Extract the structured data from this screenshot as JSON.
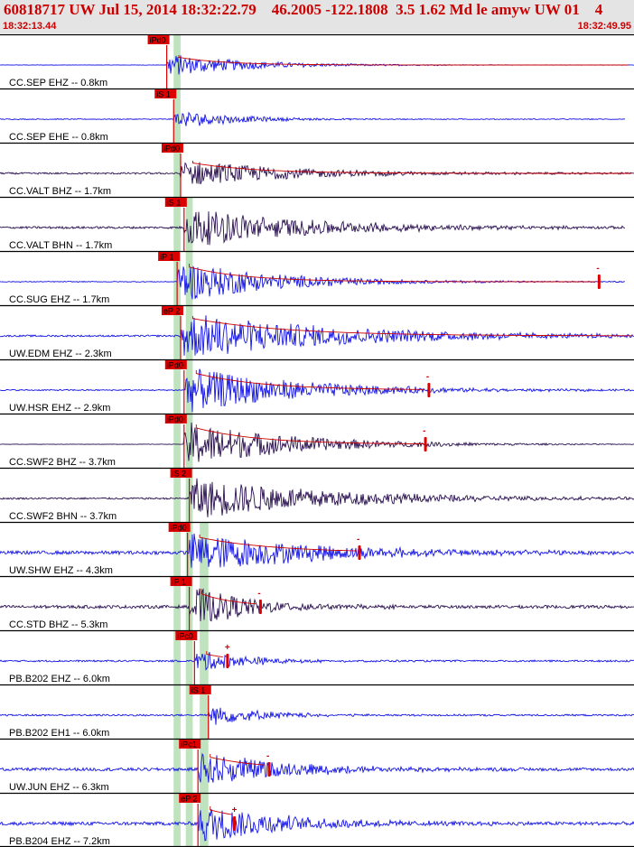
{
  "header": {
    "title": "60818717 UW Jul 15, 2014 18:32:22.79    46.2005 -122.1808  3.5 1.62 Md le amyw UW 01    4",
    "start_time": "18:32:13.44",
    "end_time": "18:32:49.95"
  },
  "colors": {
    "header_bg": "#e4e4e4",
    "header_text": "#cc0000",
    "pick_red": "#dd0000",
    "window_green": "#b8e0b8",
    "trace_blue": "#1414e6",
    "trace_dark": "#2a1050",
    "coda_line": "#cc0000"
  },
  "chart_data": {
    "type": "seismogram",
    "time_axis": {
      "start": "18:32:13.44",
      "end": "18:32:49.95"
    },
    "traces": [
      {
        "label": "CC.SEP EHZ -- 0.8km",
        "pick": "iPd0",
        "color": "blue",
        "onset_s": 9.6,
        "amplitude": 0.55,
        "decay_s": 4.5,
        "noise": 0.01,
        "trace_end_s": 36.51,
        "coda_line": true,
        "coda_marker_s": null
      },
      {
        "label": "CC.SEP EHE -- 0.8km",
        "pick": "iS 1",
        "color": "blue",
        "onset_s": 10.0,
        "amplitude": 0.45,
        "decay_s": 3.5,
        "noise": 0.02,
        "trace_end_s": 36.0,
        "coda_line": false,
        "coda_marker_s": null
      },
      {
        "label": "CC.VALT BHZ -- 1.7km",
        "pick": "iPd0",
        "color": "dark",
        "onset_s": 10.4,
        "amplitude": 0.7,
        "decay_s": 6.0,
        "noise": 0.04,
        "trace_end_s": 36.51,
        "coda_line": true,
        "coda_marker_s": null
      },
      {
        "label": "CC.VALT BHN -- 1.7km",
        "pick": "iS 1",
        "color": "dark",
        "onset_s": 10.6,
        "amplitude": 0.95,
        "decay_s": 7.0,
        "noise": 0.05,
        "trace_end_s": 36.0,
        "coda_line": false,
        "coda_marker_s": null
      },
      {
        "label": "CC.SUG EHZ -- 1.7km",
        "pick": "iP 1",
        "color": "blue",
        "onset_s": 10.2,
        "amplitude": 1.0,
        "decay_s": 5.5,
        "noise": 0.02,
        "trace_end_s": 36.0,
        "coda_line": true,
        "coda_marker_s": 34.5
      },
      {
        "label": "UW.EDM EHZ -- 2.3km",
        "pick": "eP 2",
        "color": "blue",
        "onset_s": 10.4,
        "amplitude": 1.1,
        "decay_s": 9.0,
        "noise": 0.04,
        "trace_end_s": 36.51,
        "coda_line": true,
        "coda_marker_s": null
      },
      {
        "label": "UW.HSR EHZ -- 2.9km",
        "pick": "iPd0",
        "color": "blue",
        "onset_s": 10.6,
        "amplitude": 1.1,
        "decay_s": 6.5,
        "noise": 0.03,
        "trace_end_s": 36.51,
        "coda_line": true,
        "coda_marker_s": 24.7
      },
      {
        "label": "CC.SWF2 BHZ -- 3.7km",
        "pick": "iPd0",
        "color": "dark",
        "onset_s": 10.6,
        "amplitude": 1.1,
        "decay_s": 6.0,
        "noise": 0.01,
        "trace_end_s": 36.51,
        "coda_line": true,
        "coda_marker_s": 24.5
      },
      {
        "label": "CC.SWF2 BHN -- 3.7km",
        "pick": "iS 2",
        "color": "dark",
        "onset_s": 10.9,
        "amplitude": 1.0,
        "decay_s": 8.0,
        "noise": 0.04,
        "trace_end_s": 36.51,
        "coda_line": false,
        "coda_marker_s": null
      },
      {
        "label": "UW.SHW EHZ -- 4.3km",
        "pick": "iPd0",
        "color": "blue",
        "onset_s": 10.8,
        "amplitude": 1.0,
        "decay_s": 7.0,
        "noise": 0.08,
        "trace_end_s": 36.51,
        "coda_line": true,
        "coda_marker_s": 20.7
      },
      {
        "label": "CC.STD BHZ -- 5.3km",
        "pick": "iP 1",
        "color": "dark",
        "onset_s": 10.9,
        "amplitude": 1.0,
        "decay_s": 3.5,
        "noise": 0.07,
        "trace_end_s": 36.51,
        "coda_line": true,
        "coda_marker_s": 15.0
      },
      {
        "label": "PB.B202 EHZ -- 6.0km",
        "pick": "iPc0",
        "color": "blue",
        "onset_s": 11.2,
        "amplitude": 0.55,
        "decay_s": 3.0,
        "noise": 0.04,
        "trace_end_s": 36.51,
        "coda_line": true,
        "coda_marker_s": 13.1
      },
      {
        "label": "PB.B202 EH1 -- 6.0km",
        "pick": "iS 1",
        "color": "blue",
        "onset_s": 12.0,
        "amplitude": 0.5,
        "decay_s": 3.0,
        "noise": 0.04,
        "trace_end_s": 36.51,
        "coda_line": false,
        "coda_marker_s": null
      },
      {
        "label": "UW.JUN EHZ -- 6.3km",
        "pick": "iPc1",
        "color": "blue",
        "onset_s": 11.4,
        "amplitude": 0.85,
        "decay_s": 5.0,
        "noise": 0.07,
        "trace_end_s": 36.51,
        "coda_line": true,
        "coda_marker_s": 15.5
      },
      {
        "label": "PB.B204 EHZ -- 7.2km",
        "pick": "eP 2",
        "color": "blue",
        "onset_s": 11.4,
        "amplitude": 0.95,
        "decay_s": 5.0,
        "noise": 0.08,
        "trace_end_s": 36.51,
        "coda_line": true,
        "coda_marker_s": 13.5
      }
    ],
    "coda_marker_symbols": [
      "-",
      "-",
      "-",
      "-",
      "-",
      "-",
      "+",
      "-",
      "+"
    ],
    "green_windows": [
      {
        "start_s": 10.0,
        "end_s": 10.4,
        "from_trace": 0
      },
      {
        "start_s": 10.7,
        "end_s": 11.1,
        "from_trace": 3
      },
      {
        "start_s": 11.5,
        "end_s": 12.0,
        "from_trace": 9
      }
    ]
  }
}
